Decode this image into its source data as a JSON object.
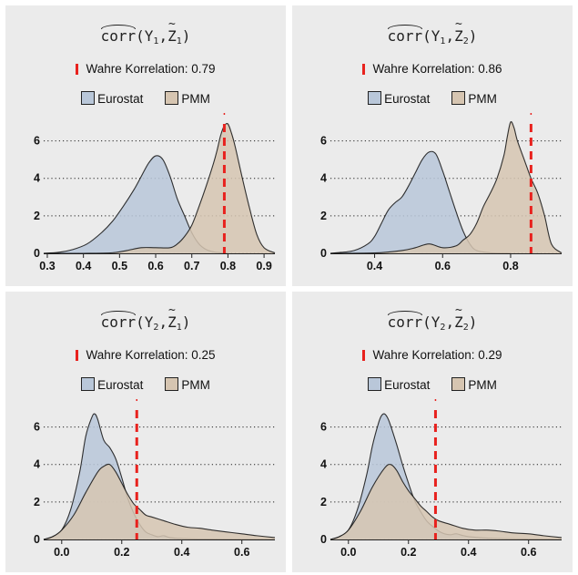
{
  "chart_data": [
    {
      "type": "area",
      "title": "corr(Y1, Z~1)",
      "title_parts": {
        "fn": "corr",
        "y": "Y",
        "ysub": "1",
        "z": "Z",
        "zsub": "1"
      },
      "true_correlation_label": "Wahre Korrelation: 0.79",
      "true_correlation": 0.79,
      "legend": [
        "Eurostat",
        "PMM"
      ],
      "legend_position": "top",
      "xlim": [
        0.29,
        0.93
      ],
      "ylim": [
        0,
        7
      ],
      "xticks": [
        0.3,
        0.4,
        0.5,
        0.6,
        0.7,
        0.8,
        0.9
      ],
      "xtick_labels": [
        "0.3",
        "0.4",
        "0.5",
        "0.6",
        "0.7",
        "0.8",
        "0.9"
      ],
      "yticks": [
        0,
        2,
        4,
        6
      ],
      "ytick_labels": [
        "0",
        "2",
        "4",
        "6"
      ],
      "grid": "horizontal dotted",
      "series": [
        {
          "name": "Eurostat",
          "color": "#b9c7d9",
          "x": [
            0.29,
            0.33,
            0.37,
            0.41,
            0.45,
            0.48,
            0.51,
            0.54,
            0.56,
            0.58,
            0.6,
            0.62,
            0.64,
            0.66,
            0.68,
            0.7,
            0.72,
            0.74,
            0.76,
            0.78,
            0.8
          ],
          "y": [
            0,
            0.05,
            0.2,
            0.5,
            1.1,
            1.7,
            2.5,
            3.4,
            4.1,
            4.8,
            5.2,
            5.0,
            4.1,
            2.9,
            2.0,
            1.1,
            0.5,
            0.2,
            0.08,
            0.03,
            0
          ]
        },
        {
          "name": "PMM",
          "color": "#d6c5b1",
          "x": [
            0.29,
            0.4,
            0.48,
            0.52,
            0.56,
            0.6,
            0.64,
            0.66,
            0.68,
            0.7,
            0.72,
            0.74,
            0.76,
            0.77,
            0.78,
            0.79,
            0.8,
            0.81,
            0.82,
            0.84,
            0.86,
            0.88,
            0.9,
            0.93
          ],
          "y": [
            0,
            0,
            0.03,
            0.15,
            0.3,
            0.3,
            0.3,
            0.5,
            0.9,
            1.5,
            2.5,
            3.6,
            4.8,
            5.5,
            6.3,
            6.8,
            6.9,
            6.4,
            5.7,
            4.0,
            2.4,
            1.0,
            0.3,
            0.02
          ]
        }
      ]
    },
    {
      "type": "area",
      "title": "corr(Y1, Z~2)",
      "title_parts": {
        "fn": "corr",
        "y": "Y",
        "ysub": "1",
        "z": "Z",
        "zsub": "2"
      },
      "true_correlation_label": "Wahre Korrelation: 0.86",
      "true_correlation": 0.86,
      "legend": [
        "Eurostat",
        "PMM"
      ],
      "legend_position": "top",
      "xlim": [
        0.27,
        0.95
      ],
      "ylim": [
        0,
        7
      ],
      "xticks": [
        0.4,
        0.6,
        0.8
      ],
      "xtick_labels": [
        "0.4",
        "0.6",
        "0.8"
      ],
      "yticks": [
        0,
        2,
        4,
        6
      ],
      "ytick_labels": [
        "0",
        "2",
        "4",
        "6"
      ],
      "grid": "horizontal dotted",
      "series": [
        {
          "name": "Eurostat",
          "color": "#b9c7d9",
          "x": [
            0.27,
            0.3,
            0.34,
            0.38,
            0.4,
            0.42,
            0.44,
            0.46,
            0.48,
            0.5,
            0.52,
            0.54,
            0.56,
            0.58,
            0.6,
            0.62,
            0.64,
            0.66,
            0.68,
            0.7,
            0.74,
            0.8
          ],
          "y": [
            0,
            0.05,
            0.15,
            0.5,
            0.9,
            1.6,
            2.3,
            2.7,
            3.0,
            3.6,
            4.3,
            5.0,
            5.4,
            5.3,
            4.4,
            3.3,
            2.2,
            1.2,
            0.5,
            0.15,
            0.03,
            0
          ]
        },
        {
          "name": "PMM",
          "color": "#d6c5b1",
          "x": [
            0.27,
            0.4,
            0.48,
            0.52,
            0.56,
            0.6,
            0.64,
            0.66,
            0.68,
            0.7,
            0.72,
            0.74,
            0.76,
            0.78,
            0.79,
            0.8,
            0.81,
            0.82,
            0.84,
            0.86,
            0.88,
            0.9,
            0.92,
            0.95
          ],
          "y": [
            0,
            0.02,
            0.15,
            0.3,
            0.5,
            0.3,
            0.4,
            0.7,
            1.0,
            1.6,
            2.5,
            3.2,
            4.0,
            5.2,
            6.2,
            7.0,
            6.7,
            6.0,
            5.0,
            4.0,
            3.2,
            2.0,
            0.5,
            0.02
          ]
        }
      ]
    },
    {
      "type": "area",
      "title": "corr(Y2, Z~1)",
      "title_parts": {
        "fn": "corr",
        "y": "Y",
        "ysub": "2",
        "z": "Z",
        "zsub": "1"
      },
      "true_correlation_label": "Wahre Korrelation: 0.25",
      "true_correlation": 0.25,
      "legend": [
        "Eurostat",
        "PMM"
      ],
      "legend_position": "top",
      "xlim": [
        -0.06,
        0.71
      ],
      "ylim": [
        0,
        7
      ],
      "xticks": [
        0.0,
        0.2,
        0.4,
        0.6
      ],
      "xtick_labels": [
        "0.0",
        "0.2",
        "0.4",
        "0.6"
      ],
      "yticks": [
        0,
        2,
        4,
        6
      ],
      "ytick_labels": [
        "0",
        "2",
        "4",
        "6"
      ],
      "grid": "horizontal dotted",
      "series": [
        {
          "name": "Eurostat",
          "color": "#b9c7d9",
          "x": [
            -0.06,
            -0.03,
            0.0,
            0.03,
            0.06,
            0.08,
            0.1,
            0.11,
            0.12,
            0.14,
            0.16,
            0.18,
            0.2,
            0.22,
            0.24,
            0.26,
            0.28,
            0.3,
            0.32,
            0.34,
            0.36,
            0.4,
            0.48,
            0.71
          ],
          "y": [
            0,
            0.15,
            0.5,
            1.6,
            3.6,
            5.5,
            6.5,
            6.7,
            6.4,
            5.3,
            4.9,
            4.3,
            3.3,
            2.2,
            1.4,
            0.8,
            0.4,
            0.25,
            0.15,
            0.2,
            0.1,
            0.05,
            0.02,
            0
          ]
        },
        {
          "name": "PMM",
          "color": "#d6c5b1",
          "x": [
            -0.06,
            -0.03,
            0.0,
            0.04,
            0.08,
            0.12,
            0.14,
            0.16,
            0.18,
            0.2,
            0.22,
            0.24,
            0.26,
            0.28,
            0.3,
            0.34,
            0.38,
            0.42,
            0.46,
            0.5,
            0.55,
            0.6,
            0.65,
            0.71
          ],
          "y": [
            0,
            0.15,
            0.5,
            1.3,
            2.5,
            3.6,
            3.9,
            4.0,
            3.6,
            3.0,
            2.4,
            1.9,
            1.6,
            1.3,
            1.2,
            1.0,
            0.8,
            0.65,
            0.6,
            0.5,
            0.4,
            0.3,
            0.2,
            0.1
          ]
        }
      ]
    },
    {
      "type": "area",
      "title": "corr(Y2, Z~2)",
      "title_parts": {
        "fn": "corr",
        "y": "Y",
        "ysub": "2",
        "z": "Z",
        "zsub": "2"
      },
      "true_correlation_label": "Wahre Korrelation: 0.29",
      "true_correlation": 0.29,
      "legend": [
        "Eurostat",
        "PMM"
      ],
      "legend_position": "top",
      "xlim": [
        -0.06,
        0.71
      ],
      "ylim": [
        0,
        7
      ],
      "xticks": [
        0.0,
        0.2,
        0.4,
        0.6
      ],
      "xtick_labels": [
        "0.0",
        "0.2",
        "0.4",
        "0.6"
      ],
      "yticks": [
        0,
        2,
        4,
        6
      ],
      "ytick_labels": [
        "0",
        "2",
        "4",
        "6"
      ],
      "grid": "horizontal dotted",
      "series": [
        {
          "name": "Eurostat",
          "color": "#b9c7d9",
          "x": [
            -0.06,
            -0.03,
            0.0,
            0.03,
            0.06,
            0.08,
            0.1,
            0.11,
            0.12,
            0.13,
            0.14,
            0.16,
            0.18,
            0.2,
            0.22,
            0.24,
            0.26,
            0.28,
            0.3,
            0.32,
            0.34,
            0.36,
            0.4,
            0.5,
            0.71
          ],
          "y": [
            0,
            0.15,
            0.5,
            1.6,
            3.4,
            5.0,
            6.2,
            6.6,
            6.7,
            6.5,
            6.1,
            5.1,
            4.0,
            3.0,
            2.1,
            1.5,
            1.0,
            0.7,
            0.45,
            0.3,
            0.25,
            0.3,
            0.15,
            0.05,
            0
          ]
        },
        {
          "name": "PMM",
          "color": "#d6c5b1",
          "x": [
            -0.06,
            -0.03,
            0.0,
            0.04,
            0.08,
            0.12,
            0.14,
            0.16,
            0.18,
            0.2,
            0.22,
            0.24,
            0.26,
            0.28,
            0.3,
            0.34,
            0.38,
            0.42,
            0.46,
            0.5,
            0.55,
            0.6,
            0.65,
            0.71
          ],
          "y": [
            0,
            0.15,
            0.5,
            1.5,
            2.8,
            3.8,
            4.0,
            3.7,
            3.1,
            2.6,
            2.2,
            1.8,
            1.5,
            1.2,
            1.0,
            0.8,
            0.6,
            0.5,
            0.5,
            0.45,
            0.35,
            0.3,
            0.2,
            0.1
          ]
        }
      ]
    }
  ]
}
